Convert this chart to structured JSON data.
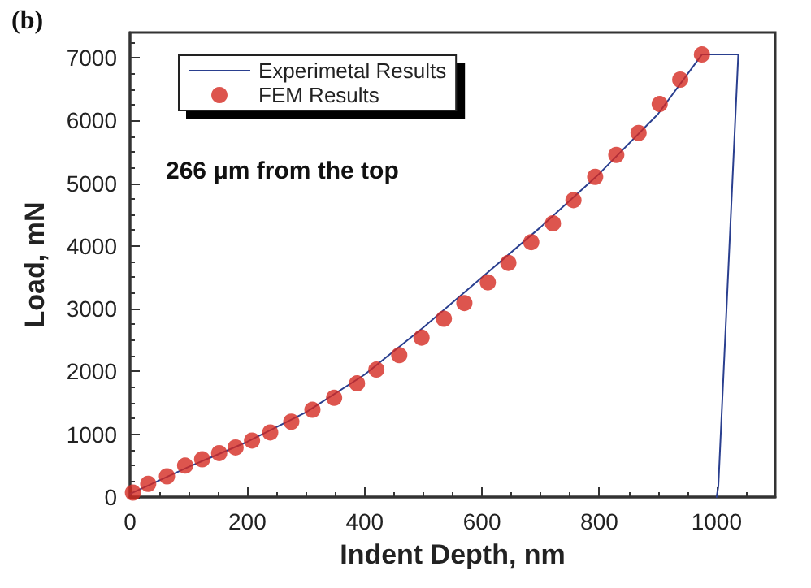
{
  "chart_data": {
    "type": "line",
    "title": "(b)",
    "xlabel": "Indent Depth, nm",
    "ylabel": "Load, mN",
    "annotations": [
      "266 μm from the top"
    ],
    "xlim": [
      0,
      1100
    ],
    "xticks": [
      0,
      200,
      400,
      600,
      800,
      1000
    ],
    "ylim": [
      0,
      7400
    ],
    "yticks": [
      0,
      1000,
      2000,
      3000,
      4000,
      5000,
      6000,
      7000
    ],
    "grid": false,
    "legend": "top left",
    "series": [
      {
        "name": "Experimetal Results",
        "color": "#2a3f8f",
        "marker": "none",
        "line_style": "solid",
        "x": [
          0,
          100,
          200,
          300,
          400,
          500,
          600,
          700,
          800,
          900,
          975,
          1037,
          1003,
          1000
        ],
        "values": [
          50,
          480,
          880,
          1350,
          1950,
          2700,
          3500,
          4300,
          5150,
          6100,
          7050,
          7050,
          170,
          0
        ]
      },
      {
        "name": "FEM Results",
        "type": "scatter",
        "color": "#d42a22",
        "marker": "circle",
        "x": [
          5,
          31,
          63,
          94,
          123,
          152,
          180,
          208,
          239,
          275,
          311,
          348,
          387,
          420,
          459,
          497,
          535,
          570,
          610,
          645,
          684,
          721,
          756,
          793,
          829,
          867,
          903,
          938,
          975
        ],
        "values": [
          70,
          210,
          330,
          500,
          600,
          700,
          790,
          900,
          1030,
          1200,
          1390,
          1580,
          1810,
          2030,
          2260,
          2540,
          2840,
          3090,
          3420,
          3730,
          4060,
          4360,
          4730,
          5100,
          5450,
          5800,
          6260,
          6650,
          7050
        ]
      }
    ]
  }
}
